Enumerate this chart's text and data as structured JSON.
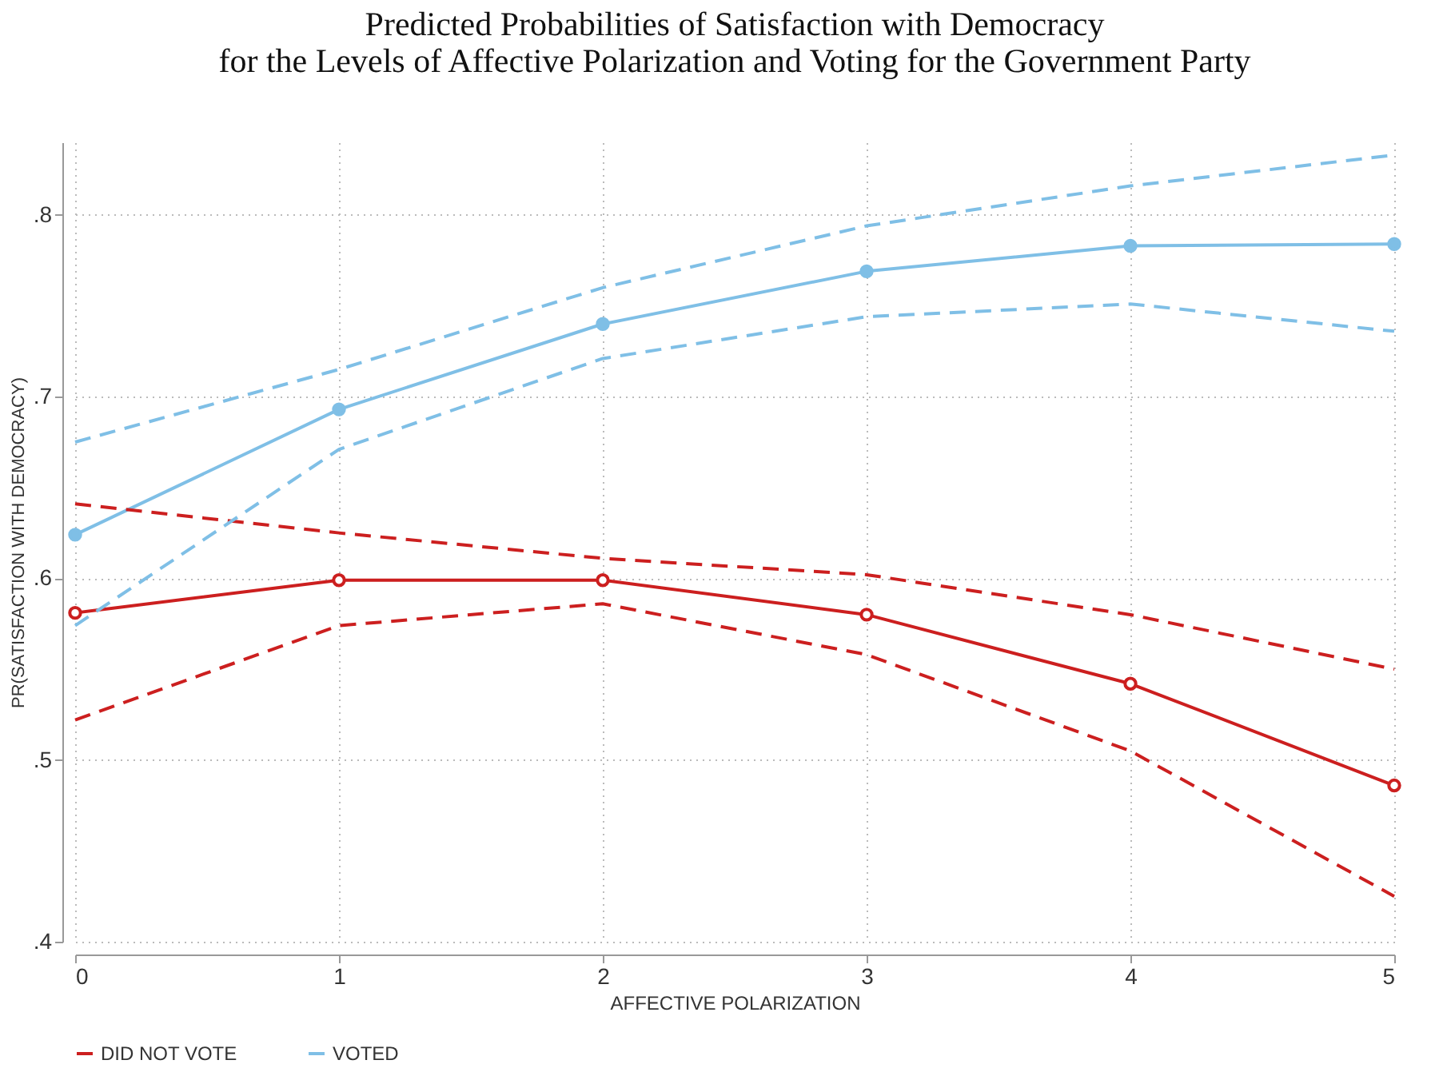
{
  "chart_data": {
    "type": "line",
    "title": "Predicted Probabilities of Satisfaction with Democracy\nfor the Levels of Affective Polarization and Voting for the Government Party",
    "xlabel": "AFFECTIVE POLARIZATION",
    "ylabel": "PR(SATISFACTION WITH DEMOCRACY)",
    "x": [
      0,
      1,
      2,
      3,
      4,
      5
    ],
    "series": [
      {
        "name": "DID NOT VOTE",
        "color": "#cc1f1f",
        "values": [
          0.581,
          0.599,
          0.599,
          0.58,
          0.542,
          0.486
        ],
        "marker": "circle",
        "line_style": "solid"
      },
      {
        "name": "VOTED",
        "color": "#7fbfe6",
        "values": [
          0.624,
          0.693,
          0.74,
          0.769,
          0.783,
          0.784
        ],
        "marker": "circle",
        "line_style": "solid"
      },
      {
        "color": "#cc1f1f",
        "values": [
          0.522,
          0.574,
          0.586,
          0.558,
          0.505,
          0.425
        ],
        "marker": "none",
        "line_style": "dashed"
      },
      {
        "color": "#cc1f1f",
        "values": [
          0.641,
          0.625,
          0.611,
          0.602,
          0.58,
          0.55
        ],
        "marker": "none",
        "line_style": "dashed"
      },
      {
        "color": "#7fbfe6",
        "values": [
          0.574,
          0.671,
          0.721,
          0.744,
          0.751,
          0.736
        ],
        "marker": "none",
        "line_style": "dashed"
      },
      {
        "color": "#7fbfe6",
        "values": [
          0.675,
          0.715,
          0.76,
          0.794,
          0.816,
          0.833
        ],
        "marker": "none",
        "line_style": "dashed"
      }
    ],
    "xlim": [
      0,
      5
    ],
    "xticks": [
      0,
      1,
      2,
      3,
      4,
      5
    ],
    "ylim": [
      0.4,
      0.84
    ],
    "yticks": [
      {
        "value": 0.4,
        "label": ".4"
      },
      {
        "value": 0.5,
        "label": ".5"
      },
      {
        "value": 0.6,
        "label": ".6"
      },
      {
        "value": 0.7,
        "label": ".7"
      },
      {
        "value": 0.8,
        "label": ".8"
      }
    ],
    "grid": true,
    "legend": "bottom"
  }
}
